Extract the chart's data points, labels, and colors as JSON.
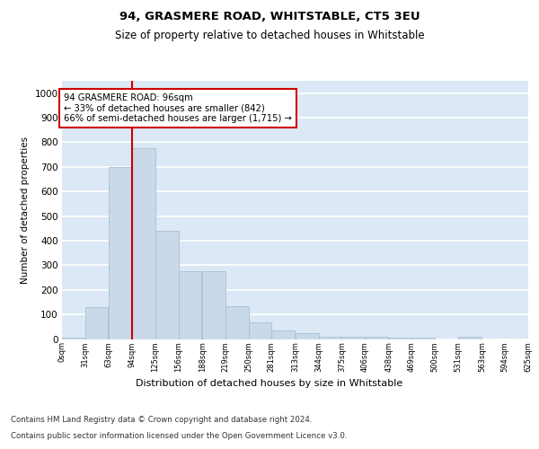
{
  "title": "94, GRASMERE ROAD, WHITSTABLE, CT5 3EU",
  "subtitle": "Size of property relative to detached houses in Whitstable",
  "xlabel": "Distribution of detached houses by size in Whitstable",
  "ylabel": "Number of detached properties",
  "bin_labels": [
    "0sqm",
    "31sqm",
    "63sqm",
    "94sqm",
    "125sqm",
    "156sqm",
    "188sqm",
    "219sqm",
    "250sqm",
    "281sqm",
    "313sqm",
    "344sqm",
    "375sqm",
    "406sqm",
    "438sqm",
    "469sqm",
    "500sqm",
    "531sqm",
    "563sqm",
    "594sqm",
    "625sqm"
  ],
  "bin_edges": [
    0,
    31,
    63,
    94,
    125,
    156,
    188,
    219,
    250,
    281,
    313,
    344,
    375,
    406,
    438,
    469,
    500,
    531,
    563,
    594,
    625
  ],
  "bar_heights": [
    5,
    130,
    700,
    775,
    440,
    275,
    275,
    135,
    68,
    35,
    22,
    10,
    10,
    10,
    5,
    5,
    0,
    8,
    0,
    0,
    0
  ],
  "bar_color": "#c9d9ea",
  "bar_edge_color": "#a8bfd4",
  "property_line_x": 94,
  "property_line_color": "#cc0000",
  "annotation_text": "94 GRASMERE ROAD: 96sqm\n← 33% of detached houses are smaller (842)\n66% of semi-detached houses are larger (1,715) →",
  "annotation_box_color": "#ffffff",
  "annotation_box_edge_color": "#cc0000",
  "ylim": [
    0,
    1050
  ],
  "yticks": [
    0,
    100,
    200,
    300,
    400,
    500,
    600,
    700,
    800,
    900,
    1000
  ],
  "background_color": "#dce8f5",
  "grid_color": "#ffffff",
  "footer_line1": "Contains HM Land Registry data © Crown copyright and database right 2024.",
  "footer_line2": "Contains public sector information licensed under the Open Government Licence v3.0."
}
